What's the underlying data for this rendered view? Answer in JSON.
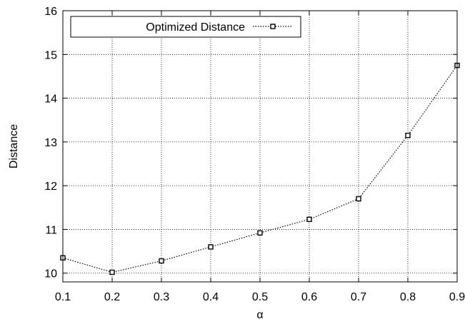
{
  "chart_data": {
    "type": "line",
    "title": "",
    "xlabel": "α",
    "ylabel": "Distance",
    "xlim": [
      0.1,
      0.9
    ],
    "ylim": [
      9.8,
      16
    ],
    "x_ticks": [
      0.1,
      0.2,
      0.3,
      0.4,
      0.5,
      0.6,
      0.7,
      0.8,
      0.9
    ],
    "x_tick_labels": [
      "0.1",
      "0.2",
      "0.3",
      "0.4",
      "0.5",
      "0.6",
      "0.7",
      "0.8",
      "0.9"
    ],
    "y_ticks": [
      10,
      11,
      12,
      13,
      14,
      15,
      16
    ],
    "y_tick_labels": [
      "10",
      "11",
      "12",
      "13",
      "14",
      "15",
      "16"
    ],
    "grid": true,
    "legend_position": "top-left",
    "series": [
      {
        "name": "Optimized Distance",
        "line_style": "dotted",
        "marker": "square",
        "color": "#000000",
        "x": [
          0.1,
          0.2,
          0.3,
          0.4,
          0.5,
          0.6,
          0.7,
          0.8,
          0.9
        ],
        "y": [
          10.35,
          10.02,
          10.28,
          10.6,
          10.92,
          11.23,
          11.7,
          13.15,
          14.75
        ]
      }
    ]
  }
}
